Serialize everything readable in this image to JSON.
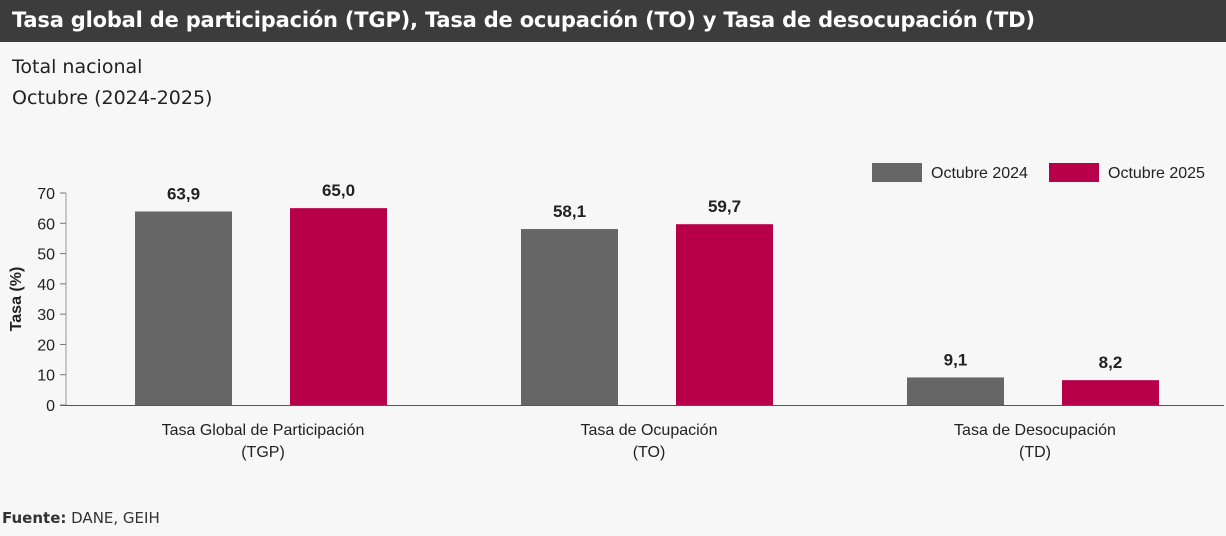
{
  "header": {
    "title": "Tasa global de participación (TGP), Tasa de ocupación (TO) y Tasa de desocupación (TD)",
    "subtitle_line1": "Total nacional",
    "subtitle_line2": "Octubre (2024-2025)"
  },
  "footer": {
    "source_label": "Fuente:",
    "source_value": " DANE, GEIH"
  },
  "colors": {
    "series_2024": "#666666",
    "series_2025": "#b8004a",
    "title_bar": "#3c3c3c"
  },
  "chart_data": {
    "type": "bar",
    "title": "",
    "ylabel": "Tasa (%)",
    "xlabel": "",
    "ylim": [
      0,
      70
    ],
    "yticks": [
      0,
      10,
      20,
      30,
      40,
      50,
      60,
      70
    ],
    "grid": false,
    "legend_position": "top-right",
    "categories": [
      [
        "Tasa Global de Participación",
        "(TGP)"
      ],
      [
        "Tasa de Ocupación",
        "(TO)"
      ],
      [
        "Tasa de Desocupación",
        "(TD)"
      ]
    ],
    "series": [
      {
        "name": "Octubre 2024",
        "values": [
          63.9,
          58.1,
          9.1
        ],
        "labels": [
          "63,9",
          "58,1",
          "9,1"
        ]
      },
      {
        "name": "Octubre 2025",
        "values": [
          65.0,
          59.7,
          8.2
        ],
        "labels": [
          "65,0",
          "59,7",
          "8,2"
        ]
      }
    ]
  }
}
